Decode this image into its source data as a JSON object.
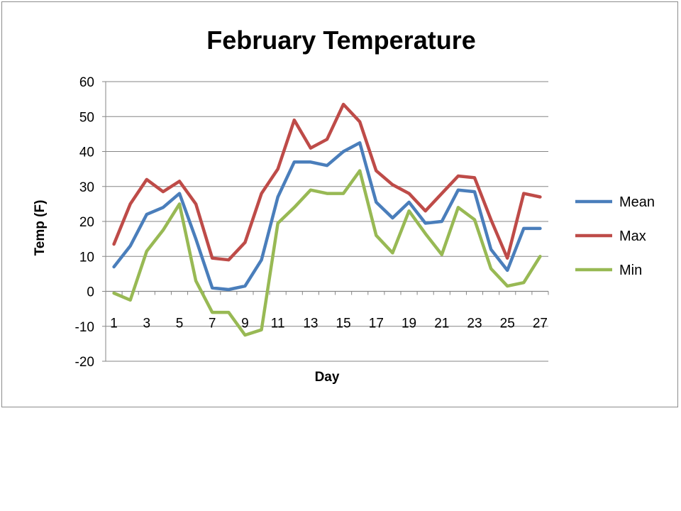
{
  "chart_data": {
    "type": "line",
    "title": "February Temperature",
    "xlabel": "Day",
    "ylabel": "Temp (F)",
    "ylim": [
      -20,
      60
    ],
    "yticks": [
      -20,
      -10,
      0,
      10,
      20,
      30,
      40,
      50,
      60
    ],
    "x": [
      1,
      2,
      3,
      4,
      5,
      6,
      7,
      8,
      9,
      10,
      11,
      12,
      13,
      14,
      15,
      16,
      17,
      18,
      19,
      20,
      21,
      22,
      23,
      24,
      25,
      26,
      27
    ],
    "xtick_labels": [
      "1",
      "3",
      "5",
      "7",
      "9",
      "11",
      "13",
      "15",
      "17",
      "19",
      "21",
      "23",
      "25",
      "27"
    ],
    "grid": "horizontal",
    "legend_position": "right",
    "series": [
      {
        "name": "Mean",
        "color": "#4a7ebb",
        "values": [
          7,
          13,
          22,
          24,
          28,
          15,
          1,
          0.5,
          1.5,
          9,
          27,
          37,
          37,
          36,
          40,
          42.5,
          25.5,
          21,
          25.5,
          19.5,
          20,
          29,
          28.5,
          12,
          6,
          18,
          18
        ]
      },
      {
        "name": "Max",
        "color": "#be4b48",
        "values": [
          13.5,
          25,
          32,
          28.5,
          31.5,
          25,
          9.5,
          9,
          14,
          28,
          35,
          49,
          41,
          43.5,
          53.5,
          48.5,
          34.5,
          30.5,
          28,
          23,
          28,
          33,
          32.5,
          20.5,
          9.5,
          28,
          27
        ]
      },
      {
        "name": "Min",
        "color": "#98b954",
        "values": [
          -0.5,
          -2.5,
          11.5,
          17.5,
          25,
          3,
          -6,
          -6,
          -12.5,
          -11,
          19.5,
          24,
          29,
          28,
          28,
          34.5,
          16,
          11,
          23,
          16.5,
          10.5,
          24,
          20.5,
          6.5,
          1.5,
          2.5,
          10
        ]
      }
    ]
  }
}
